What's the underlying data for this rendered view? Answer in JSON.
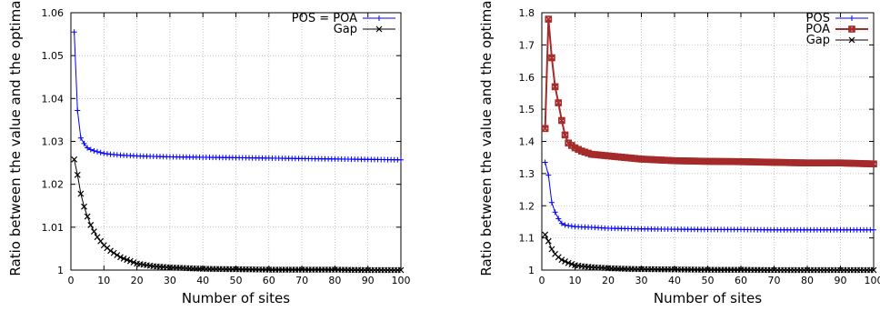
{
  "chart_data": [
    {
      "type": "line",
      "xlabel": "Number of sites",
      "ylabel": "Ratio between the value and the optimal",
      "xlim": [
        0,
        100
      ],
      "ylim": [
        1.0,
        1.06
      ],
      "xticks": [
        "0",
        "10",
        "20",
        "30",
        "40",
        "50",
        "60",
        "70",
        "80",
        "90",
        "100"
      ],
      "yticks": [
        "1",
        "1.01",
        "1.02",
        "1.03",
        "1.04",
        "1.05",
        "1.06"
      ],
      "grid": true,
      "legend_position": "top-right",
      "series": [
        {
          "name": "POS = POA",
          "color": "#0000ff",
          "marker": "plus",
          "x": [
            1,
            2,
            3,
            4,
            5,
            6,
            7,
            8,
            10,
            12,
            15,
            20,
            25,
            30,
            40,
            50,
            60,
            70,
            80,
            90,
            100
          ],
          "y": [
            1.0555,
            1.0372,
            1.0308,
            1.0295,
            1.0285,
            1.0281,
            1.0278,
            1.0276,
            1.0272,
            1.027,
            1.0268,
            1.0266,
            1.0265,
            1.0264,
            1.0263,
            1.0262,
            1.0261,
            1.026,
            1.0259,
            1.0258,
            1.0257
          ]
        },
        {
          "name": "Gap",
          "color": "#000000",
          "marker": "x",
          "x": [
            1,
            2,
            3,
            4,
            5,
            6,
            7,
            8,
            10,
            12,
            15,
            20,
            25,
            30,
            40,
            50,
            60,
            70,
            80,
            90,
            100
          ],
          "y": [
            1.0258,
            1.0222,
            1.0178,
            1.0148,
            1.0125,
            1.0105,
            1.009,
            1.0077,
            1.0058,
            1.0045,
            1.003,
            1.0015,
            1.0009,
            1.0006,
            1.0003,
            1.0002,
            1.0001,
            1.0001,
            1.0001,
            1.0,
            1.0
          ]
        }
      ]
    },
    {
      "type": "line",
      "xlabel": "Number of sites",
      "ylabel": "Ratio between the value and the optimal",
      "xlim": [
        0,
        100
      ],
      "ylim": [
        1.0,
        1.8
      ],
      "xticks": [
        "0",
        "10",
        "20",
        "30",
        "40",
        "50",
        "60",
        "70",
        "80",
        "90",
        "100"
      ],
      "yticks": [
        "1",
        "1.1",
        "1.2",
        "1.3",
        "1.4",
        "1.5",
        "1.6",
        "1.7",
        "1.8"
      ],
      "grid": true,
      "legend_position": "top-right",
      "series": [
        {
          "name": "POS",
          "color": "#0000ff",
          "marker": "plus",
          "x": [
            1,
            2,
            3,
            4,
            5,
            6,
            7,
            8,
            10,
            12,
            15,
            20,
            30,
            40,
            50,
            60,
            70,
            80,
            90,
            100
          ],
          "y": [
            1.335,
            1.295,
            1.21,
            1.18,
            1.16,
            1.145,
            1.14,
            1.138,
            1.135,
            1.134,
            1.133,
            1.13,
            1.128,
            1.127,
            1.126,
            1.126,
            1.125,
            1.125,
            1.125,
            1.125
          ]
        },
        {
          "name": "POA",
          "color": "#a52a2a",
          "marker": "square-x",
          "x": [
            1,
            2,
            3,
            4,
            5,
            6,
            7,
            8,
            10,
            12,
            15,
            20,
            25,
            30,
            40,
            50,
            60,
            70,
            80,
            90,
            100
          ],
          "y": [
            1.44,
            1.78,
            1.66,
            1.57,
            1.52,
            1.465,
            1.42,
            1.395,
            1.38,
            1.37,
            1.36,
            1.355,
            1.35,
            1.345,
            1.34,
            1.338,
            1.337,
            1.335,
            1.333,
            1.333,
            1.33
          ]
        },
        {
          "name": "Gap",
          "color": "#000000",
          "marker": "x",
          "x": [
            1,
            2,
            3,
            4,
            5,
            6,
            7,
            8,
            10,
            12,
            15,
            20,
            25,
            30,
            40,
            50,
            60,
            70,
            80,
            90,
            100
          ],
          "y": [
            1.11,
            1.09,
            1.065,
            1.05,
            1.04,
            1.032,
            1.027,
            1.022,
            1.015,
            1.012,
            1.009,
            1.006,
            1.004,
            1.003,
            1.002,
            1.001,
            1.001,
            1.0,
            1.0,
            1.0,
            1.0
          ]
        }
      ]
    }
  ]
}
